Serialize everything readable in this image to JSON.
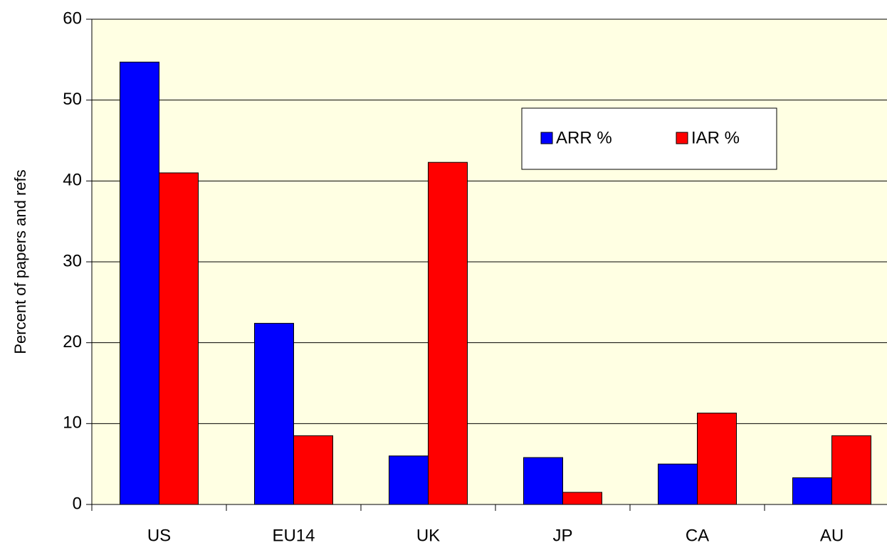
{
  "chart_data": {
    "type": "bar",
    "y_axis_label": "Percent of papers and refs",
    "categories": [
      "US",
      "EU14",
      "UK",
      "JP",
      "CA",
      "AU"
    ],
    "series": [
      {
        "name": "ARR %",
        "color": "#0000ff",
        "values": [
          54.7,
          22.4,
          6.0,
          5.8,
          5.0,
          3.3
        ]
      },
      {
        "name": "IAR %",
        "color": "#ff0000",
        "values": [
          41.0,
          8.5,
          42.3,
          1.5,
          11.3,
          8.5
        ]
      }
    ],
    "ylim": [
      0,
      60
    ],
    "yticks": [
      0,
      10,
      20,
      30,
      40,
      50,
      60
    ],
    "grid": true
  }
}
